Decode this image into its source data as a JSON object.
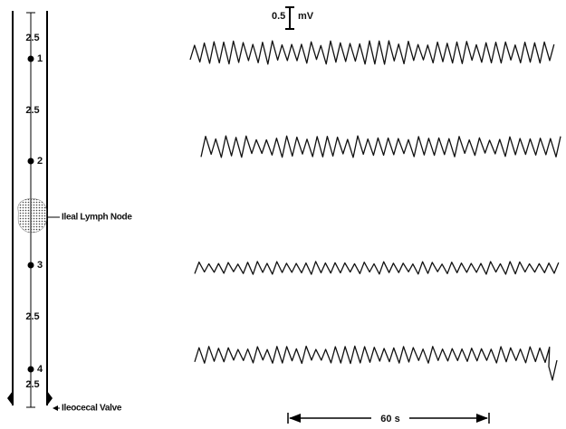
{
  "scale": {
    "value": "0.5",
    "unit": "mV"
  },
  "tube": {
    "segments": [
      "2.5",
      "2.5",
      "2.5",
      "2.5"
    ],
    "electrodes": [
      "1",
      "2",
      "3",
      "4"
    ],
    "node_label": "Ileal Lymph Node",
    "valve_label": "Ileocecal Valve"
  },
  "time_scale": "60 s"
}
